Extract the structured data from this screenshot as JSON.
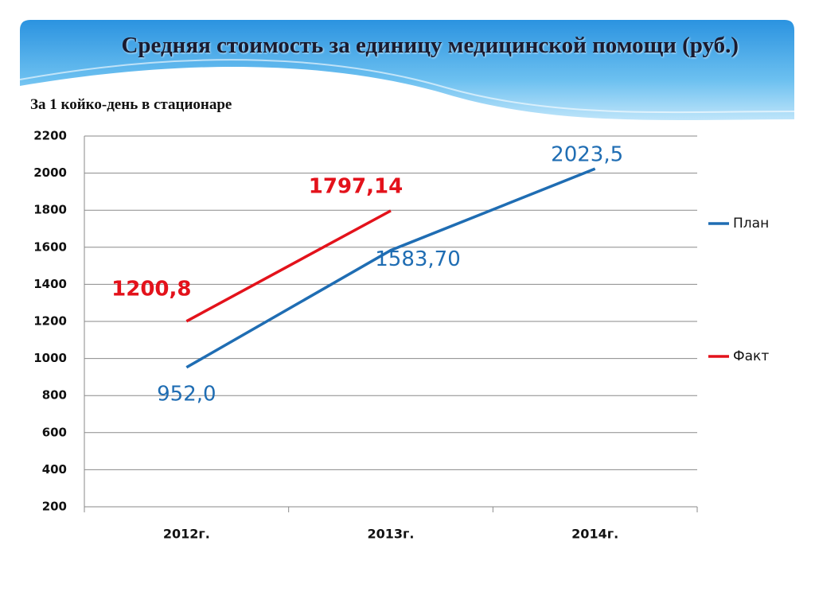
{
  "chart_data": {
    "type": "line",
    "title": "Средняя стоимость за единицу медицинской помощи (руб.)",
    "subtitle": "За 1 койко-день в стационаре",
    "categories": [
      "2012г.",
      "2013г.",
      "2014г."
    ],
    "series": [
      {
        "name": "План",
        "color": "#1f6db3",
        "values": [
          952.0,
          1583.7,
          2023.5
        ],
        "value_labels": [
          "952,0",
          "1583,70",
          "2023,5"
        ]
      },
      {
        "name": "Факт",
        "color": "#e3121b",
        "values": [
          1200.8,
          1797.14,
          null
        ],
        "value_labels": [
          "1200,8",
          "1797,14",
          null
        ]
      }
    ],
    "ylim": [
      200,
      2200
    ],
    "yticks": [
      200,
      400,
      600,
      800,
      1000,
      1200,
      1400,
      1600,
      1800,
      2000,
      2200
    ],
    "grid": true,
    "legend": "right"
  }
}
